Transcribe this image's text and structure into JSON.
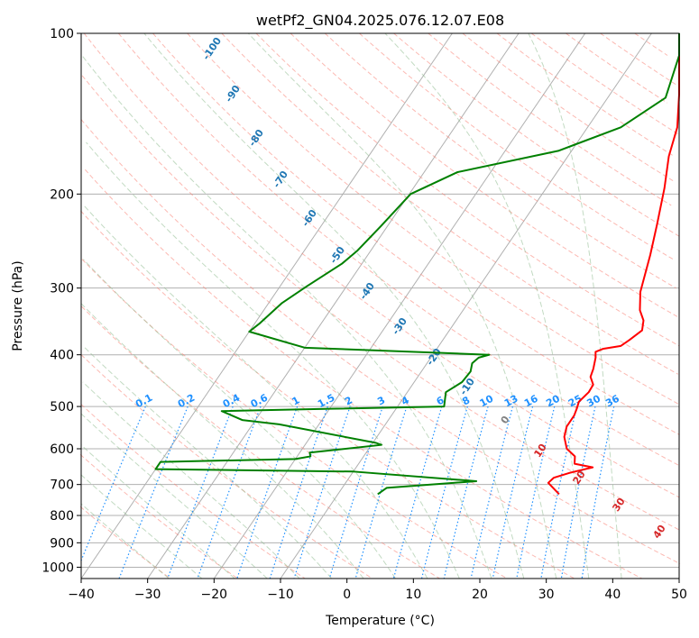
{
  "chart_data": {
    "type": "line",
    "title": "wetPf2_GN04.2025.076.12.07.E08",
    "xlabel": "Temperature (°C)",
    "ylabel": "Pressure (hPa)",
    "xlim": [
      -40,
      50
    ],
    "ylim": [
      1050,
      100
    ],
    "y_scale": "log",
    "x_ticks": [
      -40,
      -30,
      -20,
      -10,
      0,
      10,
      20,
      30,
      40,
      50
    ],
    "y_ticks": [
      100,
      200,
      300,
      400,
      500,
      600,
      700,
      800,
      900,
      1000
    ],
    "grid": true,
    "isotherm_labels": [
      -100,
      -90,
      -80,
      -70,
      -60,
      -50,
      -40,
      -30,
      -20,
      -10,
      0,
      10,
      20,
      30,
      40
    ],
    "mixing_ratio_labels": [
      "0.1",
      "0.2",
      "0.4",
      "0.6",
      "1",
      "1.5",
      "2",
      "3",
      "4",
      "6",
      "8",
      "10",
      "13",
      "16",
      "20",
      "25",
      "30",
      "36"
    ],
    "colors": {
      "temperature": "#ff0000",
      "dewpoint": "#008000",
      "isotherm_label_cold": "#1f77b4",
      "isotherm_label_zero": "#808080",
      "isotherm_label_warm": "#d62728",
      "mixing_ratio": "#1e90ff",
      "dry_adiabat": "#fa8072",
      "moist_adiabat": "#8fbc8f",
      "grid": "#b0b0b0"
    },
    "series": [
      {
        "key": "temperature",
        "points": [
          [
            23.3,
            730
          ],
          [
            20.5,
            695
          ],
          [
            20.8,
            680
          ],
          [
            22.8,
            665
          ],
          [
            25.6,
            650
          ],
          [
            22.5,
            640
          ],
          [
            21.8,
            620
          ],
          [
            19.8,
            600
          ],
          [
            18.2,
            570
          ],
          [
            17.5,
            545
          ],
          [
            17.5,
            520
          ],
          [
            17.2,
            505
          ],
          [
            16.8,
            490
          ],
          [
            17.3,
            470
          ],
          [
            17.2,
            455
          ],
          [
            16.0,
            440
          ],
          [
            15.6,
            425
          ],
          [
            14.8,
            405
          ],
          [
            14.2,
            395
          ],
          [
            15.0,
            390
          ],
          [
            17.4,
            385
          ],
          [
            18.1,
            375
          ],
          [
            19.0,
            360
          ],
          [
            18.2,
            345
          ],
          [
            16.6,
            330
          ],
          [
            14.8,
            305
          ],
          [
            12.5,
            260
          ],
          [
            10.4,
            228
          ],
          [
            7.8,
            195
          ],
          [
            5.2,
            170
          ],
          [
            3.5,
            150
          ],
          [
            2.1,
            130
          ],
          [
            1.0,
            112
          ],
          [
            0.9,
            104
          ],
          [
            1.2,
            100
          ]
        ]
      },
      {
        "key": "dewpoint",
        "points": [
          [
            -4.0,
            730
          ],
          [
            -3.3,
            710
          ],
          [
            9.5,
            690
          ],
          [
            -10,
            662
          ],
          [
            -40,
            655
          ],
          [
            -40,
            635
          ],
          [
            -20,
            627
          ],
          [
            -18,
            620
          ],
          [
            -18.5,
            610
          ],
          [
            -8.5,
            590
          ],
          [
            -9.5,
            585
          ],
          [
            -26,
            540
          ],
          [
            -32,
            530
          ],
          [
            -36,
            510
          ],
          [
            -20,
            505
          ],
          [
            -3,
            500
          ],
          [
            -4.2,
            470
          ],
          [
            -2.8,
            450
          ],
          [
            -2.6,
            430
          ],
          [
            -3.2,
            415
          ],
          [
            -2.8,
            405
          ],
          [
            -1.5,
            400
          ],
          [
            -30,
            388
          ],
          [
            -40,
            362
          ],
          [
            -39.3,
            350
          ],
          [
            -38,
            320
          ],
          [
            -36,
            298
          ],
          [
            -33,
            270
          ],
          [
            -32,
            255
          ],
          [
            -31,
            230
          ],
          [
            -29.8,
            200
          ],
          [
            -25,
            182
          ],
          [
            -12,
            166
          ],
          [
            -5,
            150
          ],
          [
            -1.3,
            132
          ],
          [
            0.6,
            110
          ],
          [
            2,
            100
          ]
        ]
      }
    ]
  }
}
